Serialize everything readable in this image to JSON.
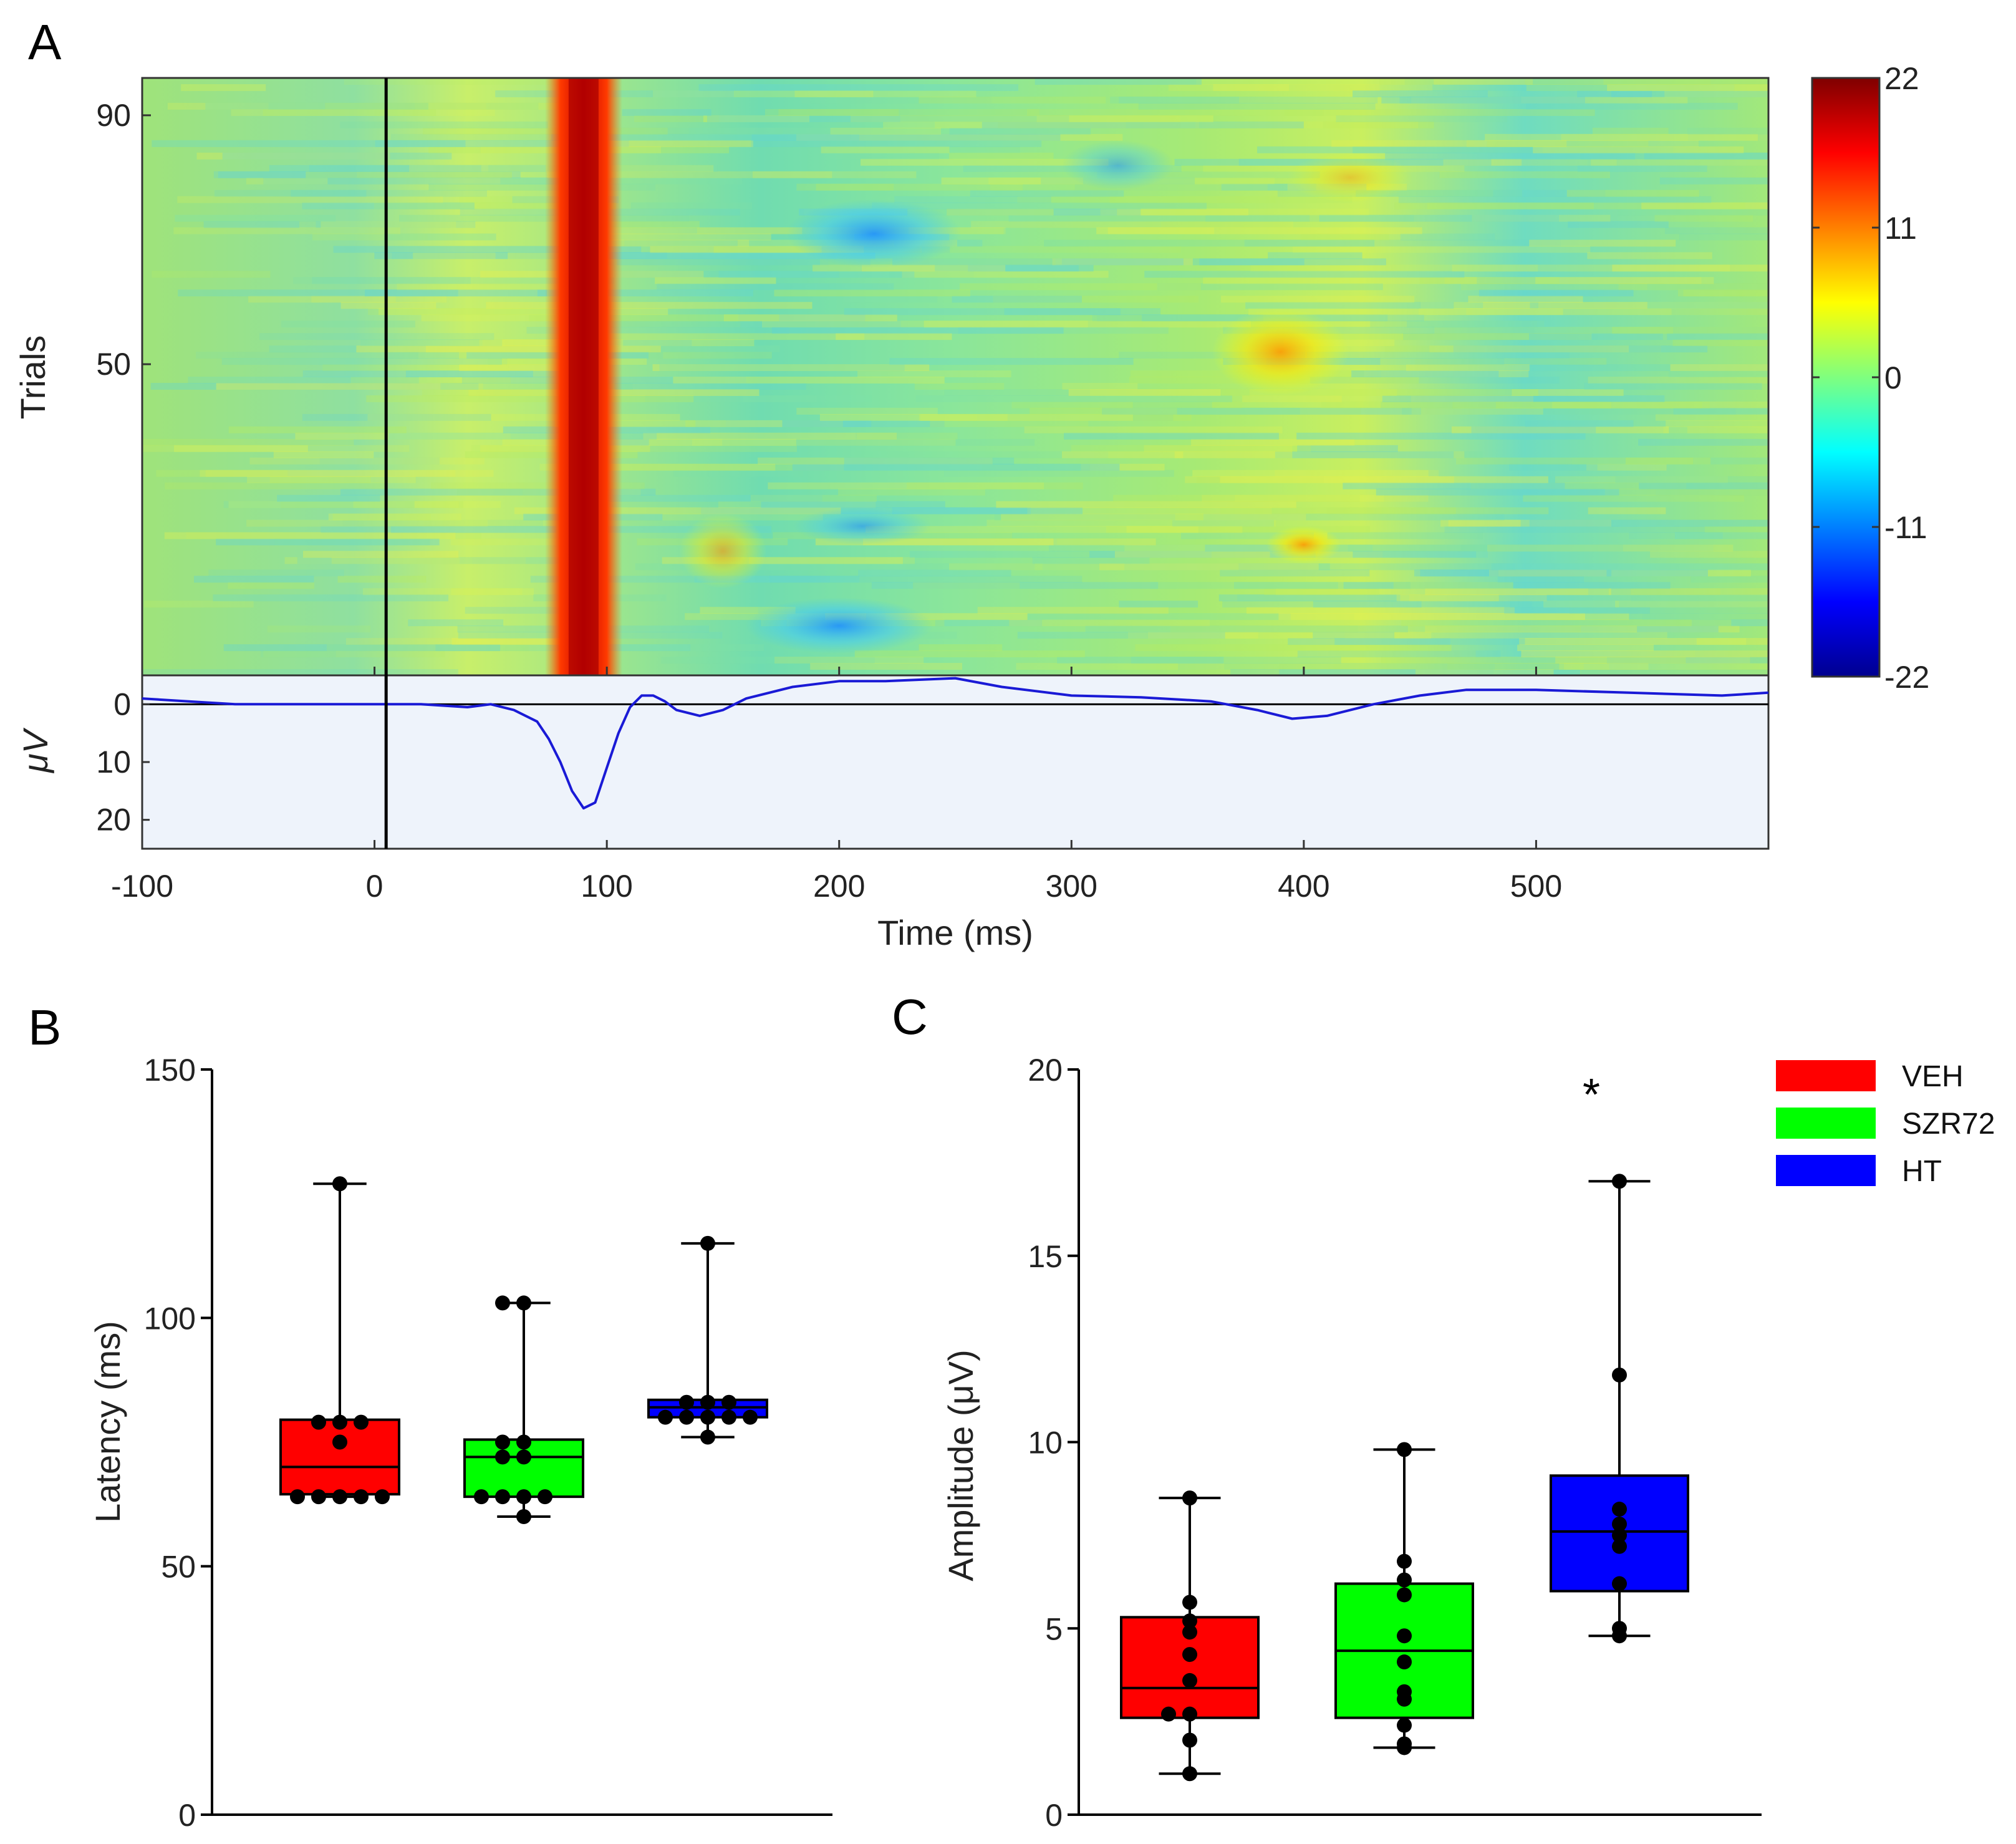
{
  "panel_labels": {
    "a": "A",
    "b": "B",
    "c": "C"
  },
  "colors": {
    "VEH": "#ff0000",
    "SZR72": "#00ff00",
    "HT": "#0000ff",
    "erp_line": "#1a1ad6",
    "erp_bg": "#eef3fb"
  },
  "chart_data": [
    {
      "id": "A_heatmap",
      "type": "heatmap",
      "ylabel": "Trials",
      "xlim": [
        -100,
        600
      ],
      "ylim": [
        0,
        96
      ],
      "yticks": [
        "90",
        "50"
      ],
      "ytick_values": [
        90,
        50
      ],
      "colorbar": {
        "min": -22,
        "max": 22,
        "ticks": [
          "22",
          "11",
          "0",
          "-11",
          "-22"
        ],
        "tick_values": [
          22,
          11,
          0,
          -11,
          -22
        ]
      },
      "stimulus_onset_ms": 5,
      "features": [
        {
          "label": "N1 positive band",
          "t_ms": 90,
          "value_uV": 22
        },
        {
          "label": "negative region",
          "t_ms": 215,
          "value_uV": -12
        },
        {
          "label": "negative region",
          "t_ms": 200,
          "value_uV": -10
        },
        {
          "label": "positive region",
          "t_ms": 390,
          "value_uV": 10
        }
      ]
    },
    {
      "id": "A_erp",
      "type": "line",
      "ylabel": "μV",
      "xlabel": "Time (ms)",
      "xlim": [
        -100,
        600
      ],
      "ylim_inverted": [
        -5,
        25
      ],
      "yticks": [
        "0",
        "10",
        "20"
      ],
      "ytick_values": [
        0,
        10,
        20
      ],
      "xticks": [
        "-100",
        "0",
        "100",
        "200",
        "300",
        "400",
        "500"
      ],
      "xtick_values": [
        -100,
        0,
        100,
        200,
        300,
        400,
        500
      ],
      "x": [
        -100,
        -80,
        -60,
        -40,
        -20,
        0,
        20,
        40,
        50,
        60,
        70,
        75,
        80,
        85,
        90,
        95,
        100,
        105,
        110,
        115,
        120,
        125,
        130,
        140,
        150,
        160,
        180,
        200,
        220,
        250,
        270,
        300,
        330,
        360,
        380,
        395,
        410,
        430,
        450,
        470,
        500,
        540,
        580,
        600
      ],
      "y": [
        -1,
        -0.5,
        0,
        0,
        0,
        0,
        0,
        0.5,
        0,
        1,
        3,
        6,
        10,
        15,
        18,
        17,
        11,
        5,
        0.5,
        -1.5,
        -1.5,
        -0.5,
        1,
        2,
        1,
        -1,
        -3,
        -4,
        -4,
        -4.5,
        -3,
        -1.5,
        -1.2,
        -0.5,
        1,
        2.5,
        2,
        0,
        -1.5,
        -2.5,
        -2.5,
        -2,
        -1.5,
        -2
      ]
    },
    {
      "id": "B",
      "type": "box",
      "ylabel": "Latency (ms)",
      "ylim": [
        0,
        150
      ],
      "yticks": [
        "150",
        "100",
        "50",
        "0"
      ],
      "ytick_values": [
        150,
        100,
        50,
        0
      ],
      "groups": [
        {
          "name": "VEH",
          "min": 64,
          "q1": 64.5,
          "median": 70,
          "q3": 79.5,
          "max": 127,
          "points": [
            127,
            79,
            79,
            79,
            75,
            64,
            64,
            64,
            64,
            64
          ]
        },
        {
          "name": "SZR72",
          "min": 60,
          "q1": 64,
          "median": 72,
          "q3": 75.5,
          "max": 103,
          "points": [
            103,
            103,
            75,
            75,
            72,
            72,
            64,
            64,
            64,
            64,
            60
          ]
        },
        {
          "name": "HT",
          "min": 76,
          "q1": 80,
          "median": 82,
          "q3": 83.5,
          "max": 115,
          "points": [
            115,
            83,
            83,
            83,
            80,
            80,
            80,
            80,
            80,
            76
          ]
        }
      ]
    },
    {
      "id": "C",
      "type": "box",
      "ylabel": "Amplitude (μV)",
      "ylim": [
        0,
        20
      ],
      "yticks": [
        "20",
        "15",
        "10",
        "5",
        "0"
      ],
      "ytick_values": [
        20,
        15,
        10,
        5,
        0
      ],
      "annotation": "*",
      "legend": [
        "VEH",
        "SZR72",
        "HT"
      ],
      "groups": [
        {
          "name": "VEH",
          "min": 1.1,
          "q1": 2.6,
          "median": 3.4,
          "q3": 5.3,
          "max": 8.5,
          "points": [
            8.5,
            5.7,
            5.2,
            4.9,
            4.3,
            3.6,
            2.7,
            2.7,
            2.0,
            1.1
          ]
        },
        {
          "name": "SZR72",
          "min": 1.8,
          "q1": 2.6,
          "median": 4.4,
          "q3": 6.2,
          "max": 9.8,
          "points": [
            9.8,
            6.8,
            6.3,
            5.9,
            4.8,
            4.1,
            3.3,
            3.1,
            2.4,
            1.9,
            1.8
          ]
        },
        {
          "name": "HT",
          "min": 4.8,
          "q1": 6.0,
          "median": 7.6,
          "q3": 9.1,
          "max": 17,
          "points": [
            17,
            11.8,
            8.2,
            7.8,
            7.5,
            7.2,
            6.2,
            5.0,
            4.8
          ]
        }
      ]
    }
  ]
}
